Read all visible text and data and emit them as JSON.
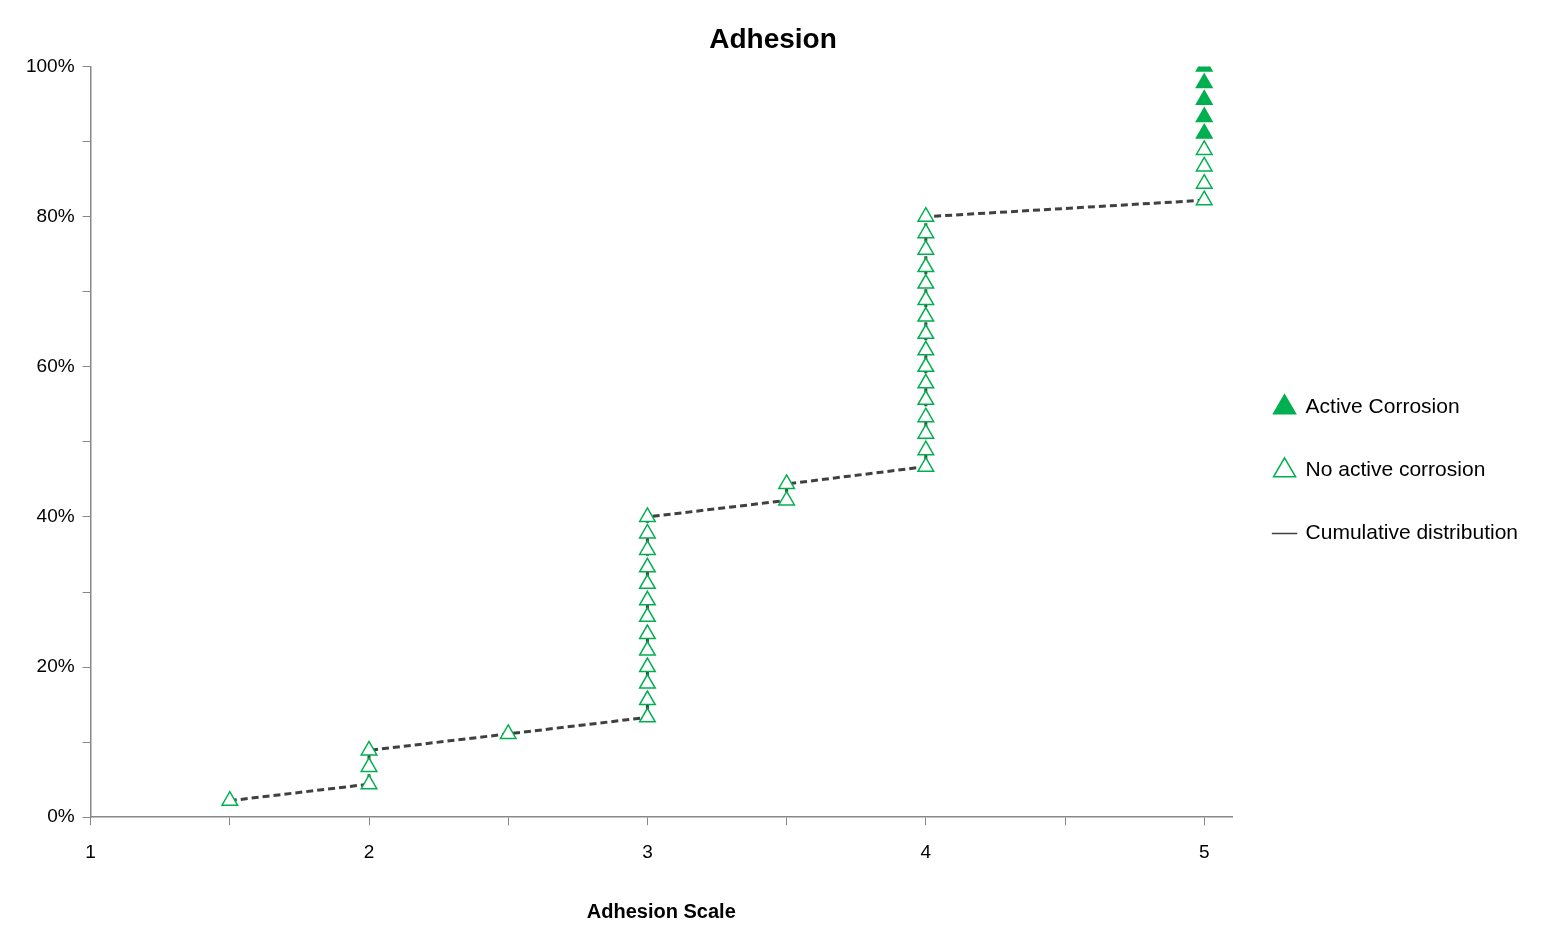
{
  "chart_data": {
    "type": "scatter",
    "title": "Adhesion",
    "xlabel": "Adhesion Scale",
    "xlim": [
      1,
      5.1
    ],
    "xticks": [
      1,
      {
        "value": 1.5,
        "label": null
      },
      2,
      {
        "value": 2.5,
        "label": null
      },
      3,
      {
        "value": 3.5,
        "label": null
      },
      4,
      {
        "value": 4.5,
        "label": null
      },
      5
    ],
    "ylim": [
      0,
      100
    ],
    "yticks": [
      {
        "value": 0,
        "label": "0%"
      },
      {
        "value": 10,
        "label": null
      },
      {
        "value": 20,
        "label": "20%"
      },
      {
        "value": 30,
        "label": null
      },
      {
        "value": 40,
        "label": "40%"
      },
      {
        "value": 50,
        "label": null
      },
      {
        "value": 60,
        "label": "60%"
      },
      {
        "value": 70,
        "label": null
      },
      {
        "value": 80,
        "label": "80%"
      },
      {
        "value": 90,
        "label": null
      },
      {
        "value": 100,
        "label": "100%"
      }
    ],
    "grid": false,
    "legend": "right",
    "series": [
      {
        "name": "Active Corrosion",
        "type": "scatter",
        "marker": "triangle",
        "color": "#00b050",
        "x": [
          5,
          5,
          5,
          5,
          5
        ],
        "values": [
          91.1,
          93.3,
          95.6,
          97.8,
          100
        ]
      },
      {
        "name": "No active corrosion",
        "type": "scatter",
        "marker": "triangle",
        "color": "#00b050",
        "x": [
          1.5,
          2,
          2,
          2,
          2.5,
          3,
          3,
          3,
          3,
          3,
          3,
          3,
          3,
          3,
          3,
          3,
          3,
          3,
          3.5,
          3.5,
          4,
          4,
          4,
          4,
          4,
          4,
          4,
          4,
          4,
          4,
          4,
          4,
          4,
          4,
          4,
          4,
          5,
          5,
          5,
          5
        ],
        "values": [
          2.2,
          4.4,
          6.7,
          8.9,
          11.1,
          13.3,
          15.6,
          17.8,
          20.0,
          22.2,
          24.4,
          26.7,
          28.9,
          31.1,
          33.3,
          35.6,
          37.8,
          40.0,
          42.2,
          44.4,
          46.7,
          48.9,
          51.1,
          53.3,
          55.6,
          57.8,
          60.0,
          62.2,
          64.4,
          66.7,
          68.9,
          71.1,
          73.3,
          75.6,
          77.8,
          80.0,
          82.2,
          84.4,
          86.7,
          88.9
        ]
      },
      {
        "name": "Cumulative distribution",
        "type": "line",
        "marker": "none",
        "line_style": "dashed",
        "color": "#404040",
        "x": [
          1.5,
          2,
          2,
          2,
          2.5,
          3,
          3,
          3,
          3,
          3,
          3,
          3,
          3,
          3,
          3,
          3,
          3,
          3,
          3.5,
          3.5,
          4,
          4,
          4,
          4,
          4,
          4,
          4,
          4,
          4,
          4,
          4,
          4,
          4,
          4,
          4,
          4,
          5
        ],
        "values": [
          2.2,
          4.4,
          6.7,
          8.9,
          11.1,
          13.3,
          15.6,
          17.8,
          20.0,
          22.2,
          24.4,
          26.7,
          28.9,
          31.1,
          33.3,
          35.6,
          37.8,
          40.0,
          42.2,
          44.4,
          46.7,
          48.9,
          51.1,
          53.3,
          55.6,
          57.8,
          60.0,
          62.2,
          64.4,
          66.7,
          68.9,
          71.1,
          73.3,
          75.6,
          77.8,
          80.0,
          82.2
        ]
      }
    ]
  }
}
